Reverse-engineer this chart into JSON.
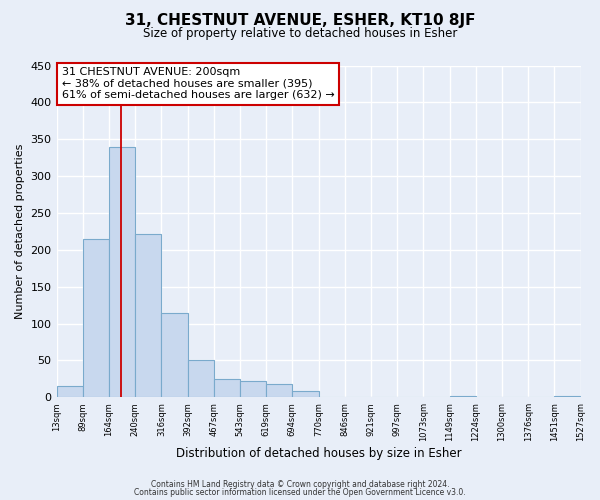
{
  "title_line1": "31, CHESTNUT AVENUE, ESHER, KT10 8JF",
  "title_line2": "Size of property relative to detached houses in Esher",
  "xlabel": "Distribution of detached houses by size in Esher",
  "ylabel": "Number of detached properties",
  "bar_values": [
    15,
    215,
    340,
    222,
    115,
    50,
    25,
    22,
    18,
    8,
    0,
    0,
    0,
    0,
    0,
    2,
    0,
    0,
    0,
    2
  ],
  "bin_edges": [
    13,
    89,
    164,
    240,
    316,
    392,
    467,
    543,
    619,
    694,
    770,
    846,
    921,
    997,
    1073,
    1149,
    1224,
    1300,
    1376,
    1451,
    1527
  ],
  "bin_labels": [
    "13sqm",
    "89sqm",
    "164sqm",
    "240sqm",
    "316sqm",
    "392sqm",
    "467sqm",
    "543sqm",
    "619sqm",
    "694sqm",
    "770sqm",
    "846sqm",
    "921sqm",
    "997sqm",
    "1073sqm",
    "1149sqm",
    "1224sqm",
    "1300sqm",
    "1376sqm",
    "1451sqm",
    "1527sqm"
  ],
  "bar_color": "#c8d8ee",
  "bar_edge_color": "#7aaacc",
  "red_line_x": 200,
  "annotation_title": "31 CHESTNUT AVENUE: 200sqm",
  "annotation_line2": "← 38% of detached houses are smaller (395)",
  "annotation_line3": "61% of semi-detached houses are larger (632) →",
  "annotation_box_color": "#ffffff",
  "annotation_box_edge": "#cc0000",
  "red_line_color": "#cc0000",
  "ylim": [
    0,
    450
  ],
  "yticks": [
    0,
    50,
    100,
    150,
    200,
    250,
    300,
    350,
    400,
    450
  ],
  "footer1": "Contains HM Land Registry data © Crown copyright and database right 2024.",
  "footer2": "Contains public sector information licensed under the Open Government Licence v3.0.",
  "background_color": "#e8eef8",
  "grid_color": "#ffffff"
}
